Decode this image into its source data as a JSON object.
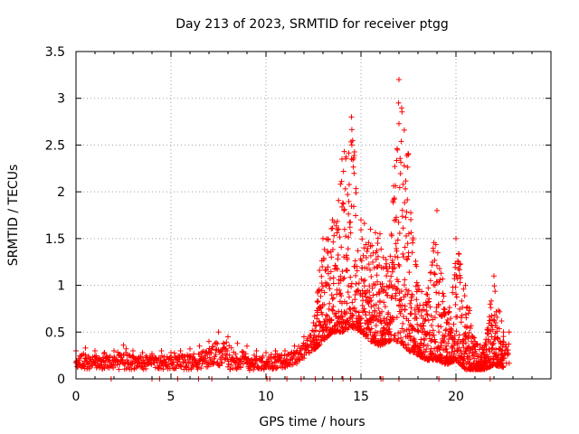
{
  "chart_data": {
    "type": "scatter",
    "title": "Day 213 of 2023, SRMTID for receiver ptgg",
    "xlabel": "GPS time / hours",
    "ylabel": "SRMTID / TECUs",
    "xlim": [
      0,
      25
    ],
    "ylim": [
      0,
      3.5
    ],
    "x_ticks": [
      0,
      5,
      10,
      15,
      20
    ],
    "x_tick_labels": [
      "0",
      "5",
      "10",
      "15",
      "20"
    ],
    "y_ticks": [
      0,
      0.5,
      1,
      1.5,
      2,
      2.5,
      3,
      3.5
    ],
    "y_tick_labels": [
      "0",
      "0.5",
      "1",
      "1.5",
      "2",
      "2.5",
      "3",
      "3.5"
    ],
    "grid": true,
    "marker": "plus",
    "series_color": "#ff0000",
    "series": [
      {
        "name": "SRMTID",
        "envelope_hours": [
          0,
          0.5,
          1,
          1.5,
          2,
          2.5,
          3,
          3.5,
          4,
          4.5,
          5,
          5.5,
          6,
          6.5,
          7,
          7.5,
          8,
          8.5,
          9,
          9.5,
          10,
          10.5,
          11,
          11.5,
          12,
          12.5,
          13,
          13.5,
          14,
          14.5,
          15,
          15.5,
          16,
          16.5,
          17,
          17.5,
          18,
          18.5,
          19,
          19.5,
          20,
          20.5,
          21,
          21.5,
          22,
          22.5,
          22.8
        ],
        "envelope_max": [
          0.3,
          0.33,
          0.3,
          0.28,
          0.3,
          0.36,
          0.3,
          0.28,
          0.27,
          0.3,
          0.28,
          0.3,
          0.32,
          0.35,
          0.4,
          0.5,
          0.45,
          0.38,
          0.35,
          0.3,
          0.28,
          0.3,
          0.3,
          0.35,
          0.45,
          0.6,
          1.5,
          1.7,
          2.35,
          2.8,
          1.7,
          1.6,
          1.55,
          1.2,
          3.2,
          2.4,
          1.0,
          0.9,
          1.8,
          0.6,
          1.5,
          1.0,
          0.4,
          0.35,
          1.1,
          0.5,
          0.5
        ],
        "envelope_min": [
          0.12,
          0.1,
          0.12,
          0.1,
          0.1,
          0.1,
          0.1,
          0.1,
          0.1,
          0.1,
          0.1,
          0.1,
          0.1,
          0.1,
          0.12,
          0.12,
          0.1,
          0.1,
          0.08,
          0.1,
          0.1,
          0.1,
          0.12,
          0.15,
          0.2,
          0.3,
          0.4,
          0.5,
          0.5,
          0.55,
          0.5,
          0.4,
          0.35,
          0.4,
          0.4,
          0.3,
          0.25,
          0.2,
          0.2,
          0.15,
          0.2,
          0.1,
          0.1,
          0.1,
          0.15,
          0.12,
          0.12
        ],
        "zero_points_hours": [
          1.85,
          4.0,
          4.4,
          5.35,
          6.45,
          7.15,
          10.05,
          10.2,
          11.1,
          11.85,
          12.6,
          13.5,
          14.05,
          14.45,
          16.05,
          16.15,
          17.0,
          19.1,
          20.0,
          21.8
        ]
      }
    ]
  }
}
